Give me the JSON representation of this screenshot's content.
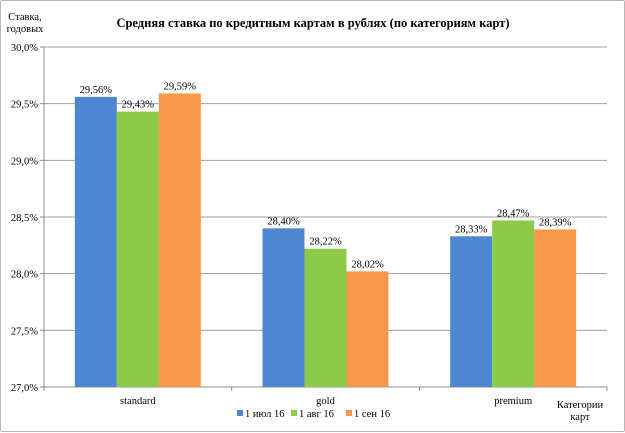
{
  "chart_data": {
    "type": "bar",
    "title": "Средняя ставка по кредитным картам в рублях  (по категориям  карт)",
    "ylabel": [
      "Ставка,",
      "годовых"
    ],
    "xlabel": [
      "Категории",
      "карт"
    ],
    "categories": [
      "standard",
      "gold",
      "premium"
    ],
    "series": [
      {
        "name": "1 июл 16",
        "color": "#4f86d0",
        "values": [
          29.56,
          28.4,
          28.33
        ],
        "labels": [
          "29,56%",
          "28,40%",
          "28,33%"
        ]
      },
      {
        "name": "1 авг 16",
        "color": "#8ccb4a",
        "values": [
          29.43,
          28.22,
          28.47
        ],
        "labels": [
          "29,43%",
          "28,22%",
          "28,47%"
        ]
      },
      {
        "name": "1 сен 16",
        "color": "#f79747",
        "values": [
          29.59,
          28.02,
          28.39
        ],
        "labels": [
          "29,59%",
          "28,02%",
          "28,39%"
        ]
      }
    ],
    "ylim": [
      27.0,
      30.0
    ],
    "yticks": [
      27.0,
      27.5,
      28.0,
      28.5,
      29.0,
      29.5,
      30.0
    ],
    "ytick_labels": [
      "27,0%",
      "27,5%",
      "28,0%",
      "28,5%",
      "29,0%",
      "29,5%",
      "30,0%"
    ],
    "grid": true,
    "legend_position": "bottom"
  }
}
